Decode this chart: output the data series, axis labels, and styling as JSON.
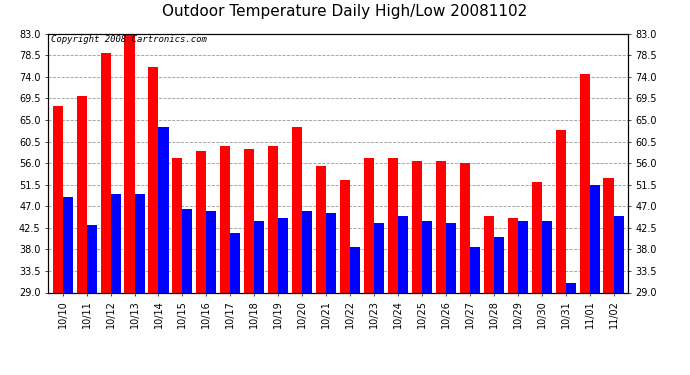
{
  "title": "Outdoor Temperature Daily High/Low 20081102",
  "copyright": "Copyright 2008 Cartronics.com",
  "dates": [
    "10/10",
    "10/11",
    "10/12",
    "10/13",
    "10/14",
    "10/15",
    "10/16",
    "10/17",
    "10/18",
    "10/19",
    "10/20",
    "10/21",
    "10/22",
    "10/23",
    "10/24",
    "10/25",
    "10/26",
    "10/27",
    "10/28",
    "10/29",
    "10/30",
    "10/31",
    "11/01",
    "11/02"
  ],
  "highs": [
    68.0,
    70.0,
    79.0,
    84.0,
    76.0,
    57.0,
    58.5,
    59.5,
    59.0,
    59.5,
    63.5,
    55.5,
    52.5,
    57.0,
    57.0,
    56.5,
    56.5,
    56.0,
    45.0,
    44.5,
    52.0,
    63.0,
    74.5,
    53.0
  ],
  "lows": [
    49.0,
    43.0,
    49.5,
    49.5,
    63.5,
    46.5,
    46.0,
    41.5,
    44.0,
    44.5,
    46.0,
    45.5,
    38.5,
    43.5,
    45.0,
    44.0,
    43.5,
    38.5,
    40.5,
    44.0,
    44.0,
    31.0,
    51.5,
    45.0
  ],
  "high_color": "#FF0000",
  "low_color": "#0000FF",
  "bg_color": "#FFFFFF",
  "grid_color": "#999999",
  "ylim_min": 29.0,
  "ylim_max": 83.0,
  "yticks": [
    29.0,
    33.5,
    38.0,
    42.5,
    47.0,
    51.5,
    56.0,
    60.5,
    65.0,
    69.5,
    74.0,
    78.5,
    83.0
  ],
  "bar_width": 0.42,
  "title_fontsize": 11,
  "tick_fontsize": 7,
  "copyright_fontsize": 6.5
}
